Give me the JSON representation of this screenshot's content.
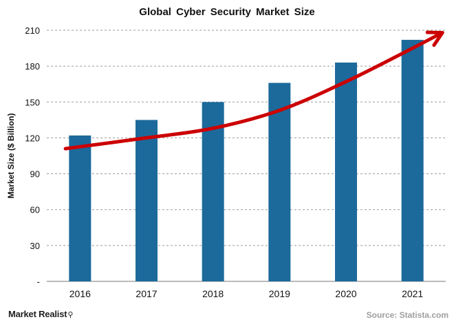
{
  "chart_data": {
    "type": "bar",
    "title": "Global Cyber Security Market Size",
    "xlabel": "",
    "ylabel": "Market Size ($ Billion)",
    "categories": [
      "2016",
      "2017",
      "2018",
      "2019",
      "2020",
      "2021"
    ],
    "values": [
      122,
      135,
      150,
      166,
      183,
      202
    ],
    "ylim": [
      0,
      210
    ],
    "yticks": [
      0,
      30,
      60,
      90,
      120,
      150,
      180,
      210
    ],
    "ytick_labels": [
      "-",
      "30",
      "60",
      "90",
      "120",
      "150",
      "180",
      "210"
    ],
    "grid": true,
    "legend": "none",
    "trend_arrow": {
      "x": [
        -0.22,
        1.0,
        2.0,
        3.0,
        4.0,
        5.0,
        5.45
      ],
      "y": [
        111,
        120,
        128,
        143,
        167,
        195,
        208
      ]
    },
    "colors": {
      "bar": "#1c6a9b",
      "arrow": "#cc0000",
      "grid": "#9a9a9a"
    }
  },
  "branding": {
    "logo_text": "Market Realist",
    "logo_mark": "⚲"
  },
  "source_text": "Source: Statista.com"
}
